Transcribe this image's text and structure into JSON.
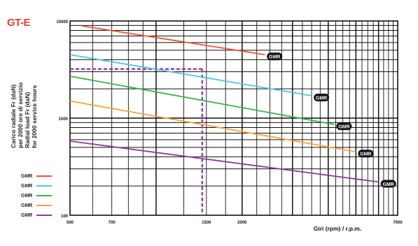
{
  "title": "GT-E",
  "ylabel_lines": [
    "Carico radiale Fr (daN)",
    "per 2000 ore di servizio",
    "Radial load Fr (daN)",
    "for 2000 service hours"
  ],
  "xlabel": "Giri (rpm) / r.p.m.",
  "colors": {
    "red": "#f0522e",
    "cyan": "#4cc6e0",
    "green": "#38b24a",
    "orange": "#f6a33a",
    "purple": "#8a3d97",
    "guide": "#9b3fb5"
  },
  "chart_data": {
    "type": "line",
    "title": "GT-E",
    "xlabel": "Giri (rpm) / r.p.m.",
    "ylabel": "Carico radiale Fr (daN) per 2000 ore di servizio / Radial load Fr (daN) for 2000 service hours",
    "x_scale": "log",
    "y_scale": "log",
    "xlim": [
      500,
      7000
    ],
    "ylim": [
      100,
      10000
    ],
    "x_ticks": [
      "500",
      "700",
      "1500",
      "2000",
      "7000"
    ],
    "y_ticks": [
      "10000",
      "1000",
      "100"
    ],
    "grid": true,
    "legend_position": "bottom-left",
    "series": [
      {
        "name": "GMR",
        "color_key": "red",
        "x": [
          550,
          2400
        ],
        "y": [
          8900,
          4500
        ],
        "end_label": "GMR"
      },
      {
        "name": "GMR",
        "color_key": "cyan",
        "x": [
          500,
          3500
        ],
        "y": [
          4500,
          1700
        ],
        "end_label": "GMR"
      },
      {
        "name": "GMR",
        "color_key": "green",
        "x": [
          500,
          4200
        ],
        "y": [
          2700,
          860
        ],
        "end_label": "GMR"
      },
      {
        "name": "GMR",
        "color_key": "orange",
        "x": [
          500,
          5000
        ],
        "y": [
          1500,
          450
        ],
        "end_label": "GMR"
      },
      {
        "name": "GMR",
        "color_key": "purple",
        "x": [
          500,
          6000
        ],
        "y": [
          580,
          220
        ],
        "end_label": "GMR"
      }
    ],
    "guide_lines": [
      {
        "x": 1450,
        "y": 3200,
        "color_key": "guide",
        "style": "dashed"
      }
    ],
    "legend": [
      {
        "label": "GMR",
        "color_key": "red"
      },
      {
        "label": "GMR",
        "color_key": "cyan"
      },
      {
        "label": "GMR",
        "color_key": "green"
      },
      {
        "label": "GMR",
        "color_key": "orange"
      },
      {
        "label": "GMR",
        "color_key": "purple"
      }
    ]
  }
}
